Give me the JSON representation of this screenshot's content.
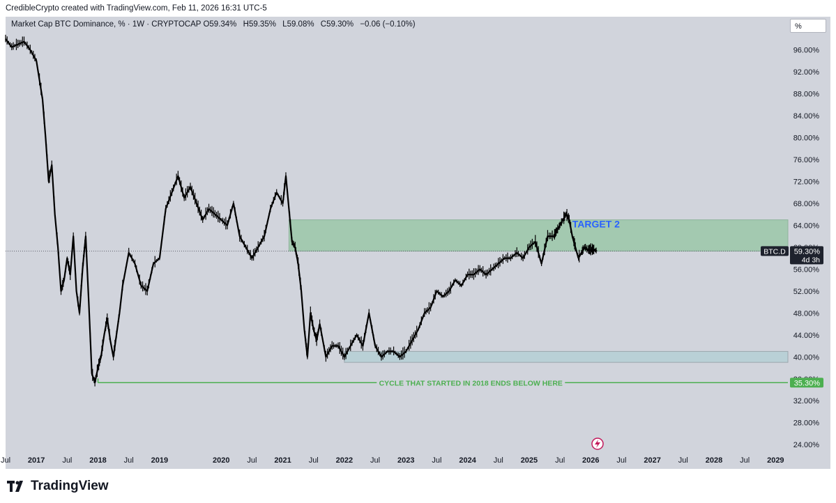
{
  "header": {
    "credit": "CredibleCrypto created with TradingView.com, Feb 11, 2026 16:31 UTC-5"
  },
  "legend": {
    "symbol": "Market Cap BTC Dominance, % · 1W · CRYPTOCAP",
    "o_label": "O",
    "o_value": "59.34%",
    "h_label": "H",
    "h_value": "59.35%",
    "l_label": "L",
    "l_value": "59.08%",
    "c_label": "C",
    "c_value": "59.30%",
    "change": "−0.06 (−0.10%)"
  },
  "scale_button": "%",
  "brand": {
    "name": "TradingView"
  },
  "colors": {
    "background": "#d1d4dc",
    "candle": "#000000",
    "target_zone": "#a3c9b0",
    "lower_zone": "#b9d0d6",
    "support_line": "#4caf50",
    "target_text": "#2962ff",
    "price_tag": "#1e222d"
  },
  "chart_data": {
    "type": "line",
    "title": "Market Cap BTC Dominance, % · 1W · CRYPTOCAP",
    "ylabel": "%",
    "ylim": [
      22.5,
      99.5
    ],
    "xlim": [
      2016.5,
      2029.2
    ],
    "y_ticks": [
      24,
      28,
      32,
      36,
      40,
      44,
      48,
      52,
      56,
      60,
      64,
      68,
      72,
      76,
      80,
      84,
      88,
      92,
      96
    ],
    "y_tick_labels": [
      "24.00%",
      "28.00%",
      "32.00%",
      "36.00%",
      "40.00%",
      "44.00%",
      "48.00%",
      "52.00%",
      "56.00%",
      "60.00%",
      "64.00%",
      "68.00%",
      "72.00%",
      "76.00%",
      "80.00%",
      "84.00%",
      "88.00%",
      "92.00%",
      "96.00%"
    ],
    "x_ticks": [
      {
        "t": 2016.5,
        "label": "Jul"
      },
      {
        "t": 2017.0,
        "label": "2017"
      },
      {
        "t": 2017.5,
        "label": "Jul"
      },
      {
        "t": 2018.0,
        "label": "2018"
      },
      {
        "t": 2018.5,
        "label": "Jul"
      },
      {
        "t": 2019.0,
        "label": "2019"
      },
      {
        "t": 2020.0,
        "label": "2020"
      },
      {
        "t": 2020.5,
        "label": "Jul"
      },
      {
        "t": 2021.0,
        "label": "2021"
      },
      {
        "t": 2021.5,
        "label": "Jul"
      },
      {
        "t": 2022.0,
        "label": "2022"
      },
      {
        "t": 2022.5,
        "label": "Jul"
      },
      {
        "t": 2023.0,
        "label": "2023"
      },
      {
        "t": 2023.5,
        "label": "Jul"
      },
      {
        "t": 2024.0,
        "label": "2024"
      },
      {
        "t": 2024.5,
        "label": "Jul"
      },
      {
        "t": 2025.0,
        "label": "2025"
      },
      {
        "t": 2025.5,
        "label": "Jul"
      },
      {
        "t": 2026.0,
        "label": "2026"
      },
      {
        "t": 2026.5,
        "label": "Jul"
      },
      {
        "t": 2027.0,
        "label": "2027"
      },
      {
        "t": 2027.5,
        "label": "Jul"
      },
      {
        "t": 2028.0,
        "label": "2028"
      },
      {
        "t": 2028.5,
        "label": "Jul"
      },
      {
        "t": 2029.0,
        "label": "2029"
      }
    ],
    "series": [
      {
        "name": "BTC.D",
        "x": [
          2016.5,
          2016.6,
          2016.7,
          2016.8,
          2016.9,
          2017.0,
          2017.1,
          2017.15,
          2017.2,
          2017.25,
          2017.3,
          2017.35,
          2017.4,
          2017.45,
          2017.5,
          2017.55,
          2017.6,
          2017.65,
          2017.7,
          2017.75,
          2017.8,
          2017.85,
          2017.9,
          2017.95,
          2018.0,
          2018.05,
          2018.1,
          2018.15,
          2018.2,
          2018.25,
          2018.3,
          2018.35,
          2018.4,
          2018.5,
          2018.6,
          2018.7,
          2018.8,
          2018.9,
          2019.0,
          2019.1,
          2019.2,
          2019.3,
          2019.4,
          2019.5,
          2019.6,
          2019.7,
          2019.8,
          2019.9,
          2020.0,
          2020.1,
          2020.2,
          2020.3,
          2020.4,
          2020.5,
          2020.6,
          2020.7,
          2020.8,
          2020.9,
          2021.0,
          2021.05,
          2021.1,
          2021.15,
          2021.2,
          2021.25,
          2021.3,
          2021.35,
          2021.4,
          2021.45,
          2021.5,
          2021.55,
          2021.6,
          2021.7,
          2021.8,
          2021.9,
          2022.0,
          2022.1,
          2022.2,
          2022.3,
          2022.4,
          2022.5,
          2022.6,
          2022.7,
          2022.8,
          2022.9,
          2023.0,
          2023.1,
          2023.2,
          2023.3,
          2023.4,
          2023.5,
          2023.6,
          2023.7,
          2023.8,
          2023.9,
          2024.0,
          2024.1,
          2024.2,
          2024.3,
          2024.4,
          2024.5,
          2024.6,
          2024.7,
          2024.8,
          2024.9,
          2025.0,
          2025.1,
          2025.2,
          2025.3,
          2025.4,
          2025.45,
          2025.5,
          2025.55,
          2025.6,
          2025.65,
          2025.7,
          2025.75,
          2025.8,
          2025.85,
          2025.9,
          2025.95,
          2026.0,
          2026.05,
          2026.1
        ],
        "values": [
          98,
          96.5,
          97,
          97.5,
          96,
          94,
          87,
          80,
          72,
          75,
          66,
          60,
          52,
          54,
          58,
          55,
          62,
          52,
          48,
          56,
          62,
          50,
          37,
          35.3,
          38,
          40,
          44,
          47,
          43,
          40,
          44,
          48,
          53,
          59,
          57,
          53,
          52,
          57,
          58,
          67,
          70,
          73,
          69,
          71,
          68,
          65,
          67,
          66,
          65,
          64,
          68,
          62,
          60,
          58,
          60,
          62,
          67,
          70,
          68,
          73,
          67,
          61,
          60,
          57,
          52,
          45,
          40,
          48,
          45,
          43,
          46,
          40,
          42,
          42,
          40,
          42,
          44,
          42,
          48,
          42,
          40,
          41,
          41,
          40,
          41,
          43,
          45,
          48,
          49,
          52,
          51,
          52,
          54,
          53,
          55,
          55,
          56,
          55,
          56,
          57,
          58,
          58,
          59,
          58,
          60,
          61,
          57,
          62,
          62,
          63,
          64,
          65,
          66,
          65,
          62,
          60,
          58,
          59,
          60,
          59.5,
          59.5,
          59.5,
          59.3
        ]
      }
    ],
    "annotations": {
      "target_label": "TARGET 2",
      "target_zone": {
        "from": 2021.1,
        "to": 2029.2,
        "low": 59.3,
        "high": 65.0
      },
      "lower_zone": {
        "from": 2022.0,
        "to": 2029.2,
        "low": 39.0,
        "high": 41.0
      },
      "support_level": 35.3,
      "support_from": 2018.0,
      "support_label": "CYCLE THAT STARTED IN 2018 ENDS BELOW HERE",
      "current_price_label": "59.30%",
      "current_symbol": "BTC.D",
      "countdown": "4d 3h",
      "support_price_label": "35.30%"
    }
  }
}
